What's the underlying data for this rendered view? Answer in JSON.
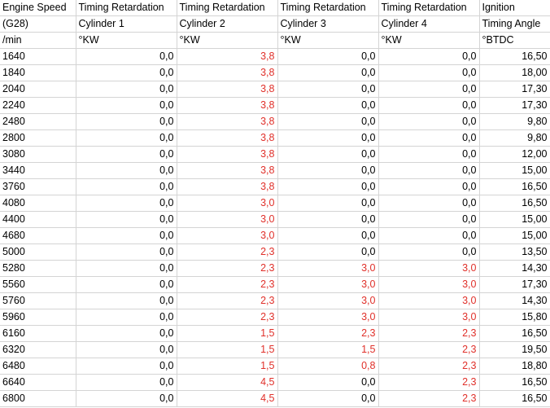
{
  "colors": {
    "highlight_text": "#e0302a",
    "default_text": "#000000",
    "gridline": "#d4d4d4"
  },
  "header_rows": [
    [
      "Engine Speed",
      "Timing Retardation",
      "Timing Retardation",
      "Timing Retardation",
      "Timing Retardation",
      "Ignition"
    ],
    [
      "(G28)",
      "Cylinder 1",
      "Cylinder 2",
      "Cylinder 3",
      "Cylinder 4",
      "Timing Angle"
    ],
    [
      " /min",
      "°KW",
      "°KW",
      "°KW",
      "°KW",
      "°BTDC"
    ]
  ],
  "rows": [
    {
      "cells": [
        "1640",
        "0,0",
        "3,8",
        "0,0",
        "0,0",
        "16,50"
      ],
      "red": [
        false,
        false,
        true,
        false,
        false,
        false
      ]
    },
    {
      "cells": [
        "1840",
        "0,0",
        "3,8",
        "0,0",
        "0,0",
        "18,00"
      ],
      "red": [
        false,
        false,
        true,
        false,
        false,
        false
      ]
    },
    {
      "cells": [
        "2040",
        "0,0",
        "3,8",
        "0,0",
        "0,0",
        "17,30"
      ],
      "red": [
        false,
        false,
        true,
        false,
        false,
        false
      ]
    },
    {
      "cells": [
        "2240",
        "0,0",
        "3,8",
        "0,0",
        "0,0",
        "17,30"
      ],
      "red": [
        false,
        false,
        true,
        false,
        false,
        false
      ]
    },
    {
      "cells": [
        "2480",
        "0,0",
        "3,8",
        "0,0",
        "0,0",
        "9,80"
      ],
      "red": [
        false,
        false,
        true,
        false,
        false,
        false
      ]
    },
    {
      "cells": [
        "2800",
        "0,0",
        "3,8",
        "0,0",
        "0,0",
        "9,80"
      ],
      "red": [
        false,
        false,
        true,
        false,
        false,
        false
      ]
    },
    {
      "cells": [
        "3080",
        "0,0",
        "3,8",
        "0,0",
        "0,0",
        "12,00"
      ],
      "red": [
        false,
        false,
        true,
        false,
        false,
        false
      ]
    },
    {
      "cells": [
        "3440",
        "0,0",
        "3,8",
        "0,0",
        "0,0",
        "15,00"
      ],
      "red": [
        false,
        false,
        true,
        false,
        false,
        false
      ]
    },
    {
      "cells": [
        "3760",
        "0,0",
        "3,8",
        "0,0",
        "0,0",
        "16,50"
      ],
      "red": [
        false,
        false,
        true,
        false,
        false,
        false
      ]
    },
    {
      "cells": [
        "4080",
        "0,0",
        "3,0",
        "0,0",
        "0,0",
        "16,50"
      ],
      "red": [
        false,
        false,
        true,
        false,
        false,
        false
      ]
    },
    {
      "cells": [
        "4400",
        "0,0",
        "3,0",
        "0,0",
        "0,0",
        "15,00"
      ],
      "red": [
        false,
        false,
        true,
        false,
        false,
        false
      ]
    },
    {
      "cells": [
        "4680",
        "0,0",
        "3,0",
        "0,0",
        "0,0",
        "15,00"
      ],
      "red": [
        false,
        false,
        true,
        false,
        false,
        false
      ]
    },
    {
      "cells": [
        "5000",
        "0,0",
        "2,3",
        "0,0",
        "0,0",
        "13,50"
      ],
      "red": [
        false,
        false,
        true,
        false,
        false,
        false
      ]
    },
    {
      "cells": [
        "5280",
        "0,0",
        "2,3",
        "3,0",
        "3,0",
        "14,30"
      ],
      "red": [
        false,
        false,
        true,
        true,
        true,
        false
      ]
    },
    {
      "cells": [
        "5560",
        "0,0",
        "2,3",
        "3,0",
        "3,0",
        "17,30"
      ],
      "red": [
        false,
        false,
        true,
        true,
        true,
        false
      ]
    },
    {
      "cells": [
        "5760",
        "0,0",
        "2,3",
        "3,0",
        "3,0",
        "14,30"
      ],
      "red": [
        false,
        false,
        true,
        true,
        true,
        false
      ]
    },
    {
      "cells": [
        "5960",
        "0,0",
        "2,3",
        "3,0",
        "3,0",
        "15,80"
      ],
      "red": [
        false,
        false,
        true,
        true,
        true,
        false
      ]
    },
    {
      "cells": [
        "6160",
        "0,0",
        "1,5",
        "2,3",
        "2,3",
        "16,50"
      ],
      "red": [
        false,
        false,
        true,
        true,
        true,
        false
      ]
    },
    {
      "cells": [
        "6320",
        "0,0",
        "1,5",
        "1,5",
        "2,3",
        "19,50"
      ],
      "red": [
        false,
        false,
        true,
        true,
        true,
        false
      ]
    },
    {
      "cells": [
        "6480",
        "0,0",
        "1,5",
        "0,8",
        "2,3",
        "18,80"
      ],
      "red": [
        false,
        false,
        true,
        true,
        true,
        false
      ]
    },
    {
      "cells": [
        "6640",
        "0,0",
        "4,5",
        "0,0",
        "2,3",
        "16,50"
      ],
      "red": [
        false,
        false,
        true,
        false,
        true,
        false
      ]
    },
    {
      "cells": [
        "6800",
        "0,0",
        "4,5",
        "0,0",
        "2,3",
        "16,50"
      ],
      "red": [
        false,
        false,
        true,
        false,
        true,
        false
      ]
    }
  ]
}
